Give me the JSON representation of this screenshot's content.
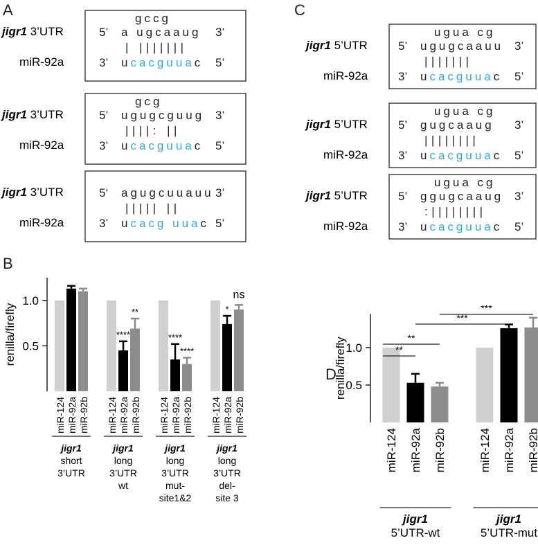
{
  "colors": {
    "red": "#e0262b",
    "blue": "#29abe2",
    "black": "#222222",
    "gray_light": "#d0d0d0",
    "black_bar": "#000000",
    "gray_mid": "#8c8c8c"
  },
  "panels": {
    "A": {
      "letter": "A",
      "boxes": [
        {
          "gene_italic": "jigr1",
          "gene_rest": " 3’UTR",
          "mir": "miR-92a",
          "top_red": "gccg",
          "utr5": "5’",
          "utr": "a  ugcaaug",
          "utr3": "3’",
          "pairs": "|  |||||||",
          "mir3": "3’",
          "mir_seq": [
            {
              "t": "u",
              "c": "black"
            },
            {
              "t": "cacguua",
              "c": "blue"
            },
            {
              "t": "c",
              "c": "black"
            }
          ],
          "mir5": "5’"
        },
        {
          "gene_italic": "jigr1",
          "gene_rest": " 3’UTR",
          "mir": "miR-92a",
          "top_red": "gcg",
          "utr5": "5’",
          "utr": "ugugcguug",
          "utr3": "3’",
          "pairs": "||||:  ||",
          "mir3": "3’",
          "mir_seq": [
            {
              "t": "u",
              "c": "black"
            },
            {
              "t": "cacguua",
              "c": "blue"
            },
            {
              "t": "c",
              "c": "black"
            }
          ],
          "mir5": "5’"
        },
        {
          "gene_italic": "jigr1",
          "gene_rest": " 3’UTR",
          "mir": "miR-92a",
          "top_red": "",
          "utr5": "5‘",
          "utr": "agugcuuauu",
          "utr3": "3’",
          "pairs": "|||||    ||",
          "mir3": "3’",
          "mir_seq": [
            {
              "t": "u",
              "c": "black"
            },
            {
              "t": "cacg",
              "c": "blue"
            },
            {
              "t": "   ",
              "c": "black"
            },
            {
              "t": "uua",
              "c": "blue"
            },
            {
              "t": "c",
              "c": "black"
            }
          ],
          "mir5": "5’"
        }
      ]
    },
    "C": {
      "letter": "C",
      "boxes": [
        {
          "gene_italic": "jigr1",
          "gene_rest": " 5’UTR",
          "mir": "miR-92a",
          "top_red": "ugua  cg",
          "utr5": "5’",
          "utr": "ugugcaauu",
          "utr3": "3’",
          "pairs": "|||||||",
          "mir3": "3’",
          "mir_seq": [
            {
              "t": "u",
              "c": "black"
            },
            {
              "t": "cacguua",
              "c": "blue"
            },
            {
              "t": "c",
              "c": "black"
            }
          ],
          "mir5": "5’"
        },
        {
          "gene_italic": "jigr1",
          "gene_rest": " 5’UTR",
          "mir": "miR-92a",
          "top_red": "ugua  cg",
          "utr5": "5’",
          "utr": "gugcaaug",
          "utr3": "3’",
          "pairs": "||||||||",
          "mir3": "3’",
          "mir_seq": [
            {
              "t": "u",
              "c": "black"
            },
            {
              "t": "cacguua",
              "c": "blue"
            },
            {
              "t": "c",
              "c": "black"
            }
          ],
          "mir5": "5’"
        },
        {
          "gene_italic": "jigr1",
          "gene_rest": " 5’UTR",
          "mir": "miR-92a",
          "top_red": "ugua  cg",
          "utr5": "5’",
          "utr": "ggugcaaug",
          "utr3": "3’",
          "pairs": ":||||||||",
          "mir3": "3’",
          "mir_seq": [
            {
              "t": "u",
              "c": "black"
            },
            {
              "t": "cacguua",
              "c": "blue"
            },
            {
              "t": "c",
              "c": "black"
            }
          ],
          "mir5": "5’"
        }
      ]
    }
  },
  "chart_data": [
    {
      "panel": "B",
      "type": "bar",
      "ylabel": "renilla/firefly",
      "ylim": [
        0.0,
        1.25
      ],
      "yticks": [
        0.5,
        1.0
      ],
      "ytick_labels": [
        "0.5",
        "1.0"
      ],
      "groups": [
        {
          "caption": [
            "jigr1",
            "short",
            "3’UTR"
          ],
          "bars": [
            {
              "label": "miR-124",
              "value": 1.0,
              "err": 0,
              "sig": "",
              "color": "gray_light"
            },
            {
              "label": "miR-92a",
              "value": 1.13,
              "err": 0.03,
              "sig": "",
              "color": "black_bar"
            },
            {
              "label": "miR-92b",
              "value": 1.1,
              "err": 0.03,
              "sig": "",
              "color": "gray_mid"
            }
          ]
        },
        {
          "caption": [
            "jigr1",
            "long",
            "3’UTR",
            "wt"
          ],
          "bars": [
            {
              "label": "miR-124",
              "value": 1.0,
              "err": 0,
              "sig": "",
              "color": "gray_light"
            },
            {
              "label": "miR-92a",
              "value": 0.45,
              "err": 0.1,
              "sig": "****",
              "color": "black_bar"
            },
            {
              "label": "miR-92b",
              "value": 0.69,
              "err": 0.11,
              "sig": "**",
              "color": "gray_mid"
            }
          ]
        },
        {
          "caption": [
            "jigr1",
            "long",
            "3’UTR",
            "mut-",
            "site1&2"
          ],
          "bars": [
            {
              "label": "miR-124",
              "value": 1.0,
              "err": 0,
              "sig": "",
              "color": "gray_light"
            },
            {
              "label": "miR-92a",
              "value": 0.35,
              "err": 0.17,
              "sig": "****",
              "color": "black_bar"
            },
            {
              "label": "miR-92b",
              "value": 0.3,
              "err": 0.07,
              "sig": "****",
              "color": "gray_mid"
            }
          ]
        },
        {
          "caption": [
            "jigr1",
            "long",
            "3’UTR",
            "del-",
            "site 3"
          ],
          "bars": [
            {
              "label": "miR-124",
              "value": 1.0,
              "err": 0,
              "sig": "",
              "color": "gray_light"
            },
            {
              "label": "miR-92a",
              "value": 0.74,
              "err": 0.09,
              "sig": "*",
              "color": "black_bar"
            },
            {
              "label": "miR-92b",
              "value": 0.9,
              "err": 0.05,
              "sig": "ns",
              "color": "gray_mid"
            }
          ]
        }
      ]
    },
    {
      "panel": "D",
      "type": "bar",
      "ylabel": "renilla/firefly",
      "ylim": [
        0.0,
        1.45
      ],
      "yticks": [
        0.5,
        1.0
      ],
      "ytick_labels": [
        "0.5",
        "1.0"
      ],
      "groups": [
        {
          "caption": [
            "jigr1",
            "5’UTR-wt"
          ],
          "bars": [
            {
              "label": "miR-124",
              "value": 1.0,
              "err": 0,
              "sig": "",
              "color": "gray_light"
            },
            {
              "label": "miR-92a",
              "value": 0.53,
              "err": 0.12,
              "sig": "",
              "color": "black_bar"
            },
            {
              "label": "miR-92b",
              "value": 0.48,
              "err": 0.05,
              "sig": "",
              "color": "gray_mid"
            }
          ]
        },
        {
          "caption": [
            "jigr1",
            "5’UTR-mut"
          ],
          "bars": [
            {
              "label": "miR-124",
              "value": 1.0,
              "err": 0,
              "sig": "",
              "color": "gray_light"
            },
            {
              "label": "miR-92a",
              "value": 1.26,
              "err": 0.05,
              "sig": "",
              "color": "black_bar"
            },
            {
              "label": "miR-92b",
              "value": 1.27,
              "err": 0.13,
              "sig": "",
              "color": "gray_mid"
            }
          ]
        }
      ],
      "comparisons": [
        {
          "from": [
            0,
            0
          ],
          "to": [
            0,
            1
          ],
          "label": "**"
        },
        {
          "from": [
            0,
            0
          ],
          "to": [
            0,
            2
          ],
          "label": "**"
        },
        {
          "from": [
            0,
            1
          ],
          "to": [
            1,
            1
          ],
          "label": "***"
        },
        {
          "from": [
            0,
            2
          ],
          "to": [
            1,
            2
          ],
          "label": "***"
        }
      ]
    }
  ]
}
